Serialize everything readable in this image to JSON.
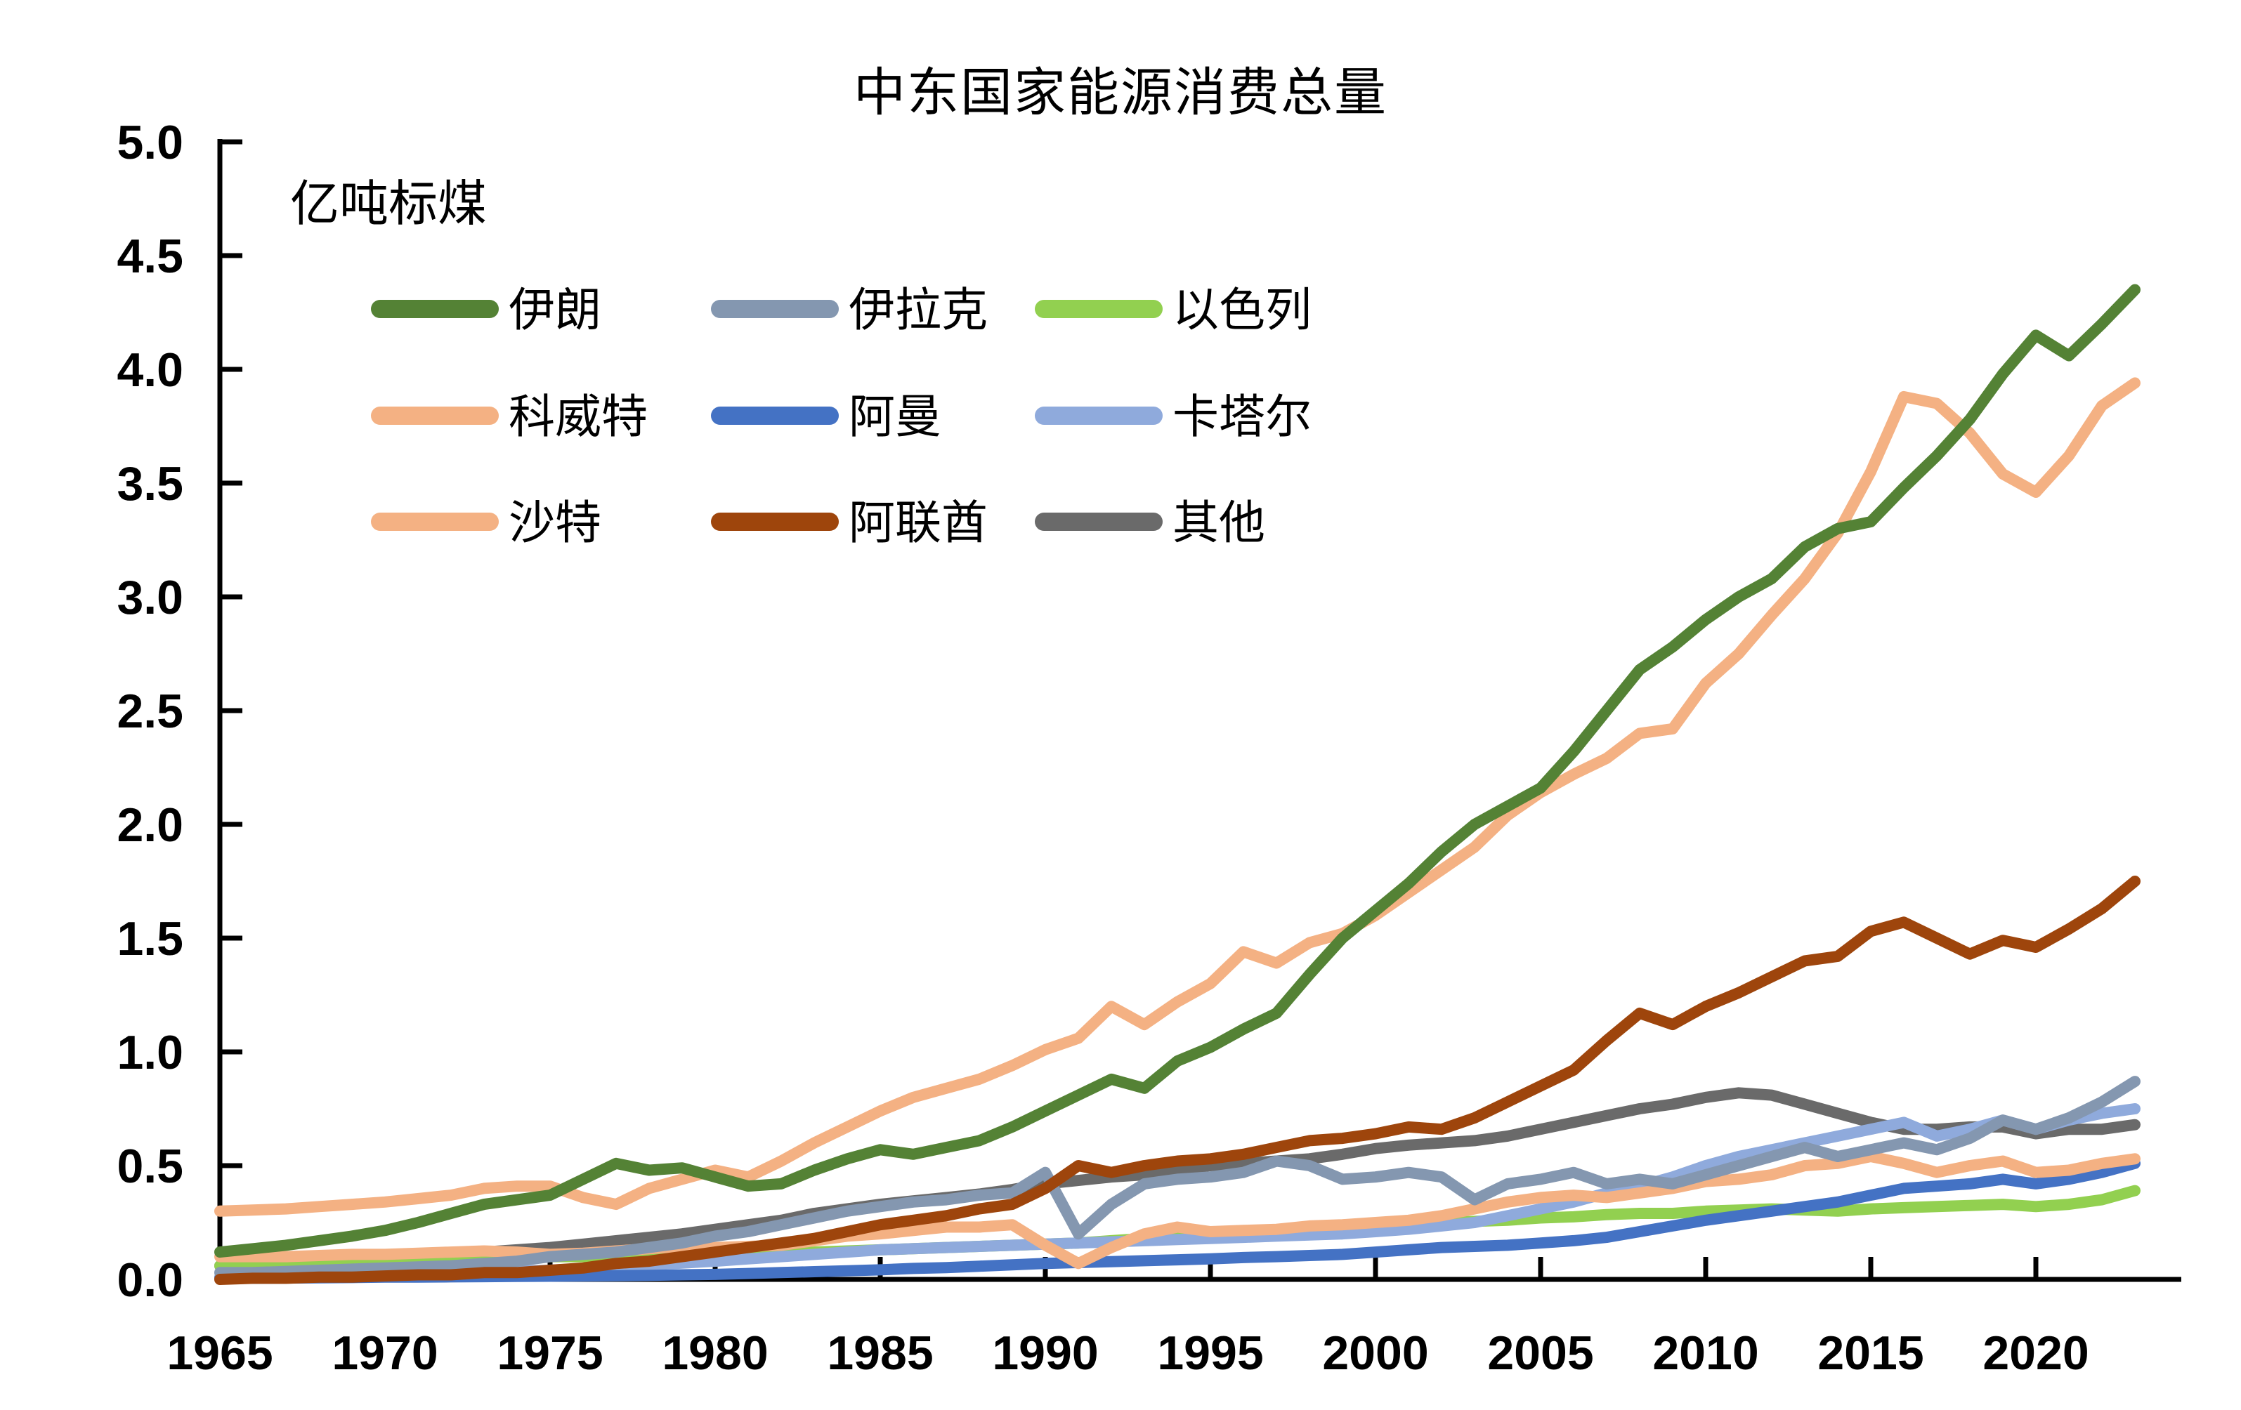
{
  "chart_data": {
    "type": "line",
    "title": "中东国家能源消费总量",
    "ylabel": "亿吨标煤",
    "xlabel": "",
    "ylim": [
      0.0,
      5.0
    ],
    "grid": false,
    "legend_position": "inside-top-left",
    "ytick_labels": [
      "0.0",
      "0.5",
      "1.0",
      "1.5",
      "2.0",
      "2.5",
      "3.0",
      "3.5",
      "4.0",
      "4.5",
      "5.0"
    ],
    "xtick_labels": [
      "1965",
      "1970",
      "1975",
      "1980",
      "1985",
      "1990",
      "1995",
      "2000",
      "2005",
      "2010",
      "2015",
      "2020"
    ],
    "years": [
      1965,
      1966,
      1967,
      1968,
      1969,
      1970,
      1971,
      1972,
      1973,
      1974,
      1975,
      1976,
      1977,
      1978,
      1979,
      1980,
      1981,
      1982,
      1983,
      1984,
      1985,
      1986,
      1987,
      1988,
      1989,
      1990,
      1991,
      1992,
      1993,
      1994,
      1995,
      1996,
      1997,
      1998,
      1999,
      2000,
      2001,
      2002,
      2003,
      2004,
      2005,
      2006,
      2007,
      2008,
      2009,
      2010,
      2011,
      2012,
      2013,
      2014,
      2015,
      2016,
      2017,
      2018,
      2019,
      2020,
      2021,
      2022,
      2023
    ],
    "legend_rows": [
      [
        "iran",
        "iraq",
        "israel"
      ],
      [
        "kuwait",
        "oman",
        "qatar"
      ],
      [
        "saudi",
        "uae",
        "others"
      ]
    ],
    "series": {
      "iran": {
        "label": "伊朗",
        "color": "#548235",
        "values": [
          0.12,
          0.135,
          0.15,
          0.17,
          0.19,
          0.215,
          0.25,
          0.29,
          0.33,
          0.35,
          0.37,
          0.44,
          0.51,
          0.48,
          0.49,
          0.45,
          0.41,
          0.42,
          0.48,
          0.53,
          0.57,
          0.55,
          0.58,
          0.61,
          0.67,
          0.74,
          0.81,
          0.88,
          0.84,
          0.96,
          1.02,
          1.1,
          1.17,
          1.34,
          1.5,
          1.62,
          1.74,
          1.88,
          2.0,
          2.08,
          2.16,
          2.32,
          2.5,
          2.68,
          2.78,
          2.9,
          3.0,
          3.08,
          3.22,
          3.3,
          3.33,
          3.48,
          3.62,
          3.78,
          3.98,
          4.15,
          4.06,
          4.2,
          4.35
        ]
      },
      "iraq": {
        "label": "伊拉克",
        "color": "#8497B0",
        "values": [
          0.03,
          0.03,
          0.035,
          0.04,
          0.045,
          0.05,
          0.055,
          0.06,
          0.07,
          0.08,
          0.1,
          0.11,
          0.12,
          0.14,
          0.16,
          0.19,
          0.21,
          0.24,
          0.27,
          0.3,
          0.32,
          0.34,
          0.35,
          0.37,
          0.38,
          0.47,
          0.2,
          0.33,
          0.42,
          0.44,
          0.45,
          0.47,
          0.52,
          0.5,
          0.44,
          0.45,
          0.47,
          0.45,
          0.35,
          0.42,
          0.44,
          0.47,
          0.42,
          0.44,
          0.42,
          0.46,
          0.5,
          0.54,
          0.58,
          0.54,
          0.57,
          0.6,
          0.57,
          0.62,
          0.7,
          0.66,
          0.71,
          0.78,
          0.87
        ]
      },
      "israel": {
        "label": "以色列",
        "color": "#92D050",
        "values": [
          0.06,
          0.065,
          0.07,
          0.072,
          0.076,
          0.08,
          0.084,
          0.088,
          0.092,
          0.096,
          0.1,
          0.1,
          0.102,
          0.105,
          0.108,
          0.11,
          0.112,
          0.115,
          0.12,
          0.125,
          0.13,
          0.135,
          0.14,
          0.145,
          0.15,
          0.155,
          0.16,
          0.17,
          0.18,
          0.19,
          0.2,
          0.21,
          0.215,
          0.22,
          0.23,
          0.245,
          0.25,
          0.25,
          0.255,
          0.26,
          0.27,
          0.275,
          0.285,
          0.29,
          0.29,
          0.3,
          0.305,
          0.31,
          0.305,
          0.3,
          0.31,
          0.315,
          0.32,
          0.325,
          0.33,
          0.32,
          0.33,
          0.35,
          0.39
        ]
      },
      "kuwait": {
        "label": "科威特",
        "color": "#F4B183",
        "values": [
          0.1,
          0.1,
          0.1,
          0.105,
          0.11,
          0.11,
          0.115,
          0.12,
          0.125,
          0.12,
          0.11,
          0.115,
          0.125,
          0.135,
          0.145,
          0.14,
          0.145,
          0.15,
          0.17,
          0.19,
          0.2,
          0.215,
          0.23,
          0.23,
          0.24,
          0.15,
          0.07,
          0.14,
          0.2,
          0.23,
          0.21,
          0.215,
          0.22,
          0.235,
          0.24,
          0.25,
          0.26,
          0.28,
          0.31,
          0.34,
          0.36,
          0.37,
          0.36,
          0.38,
          0.4,
          0.43,
          0.44,
          0.46,
          0.5,
          0.51,
          0.54,
          0.51,
          0.47,
          0.5,
          0.52,
          0.47,
          0.48,
          0.51,
          0.53
        ]
      },
      "oman": {
        "label": "阿曼",
        "color": "#4472C4",
        "values": [
          0.005,
          0.005,
          0.006,
          0.007,
          0.008,
          0.01,
          0.01,
          0.011,
          0.012,
          0.013,
          0.014,
          0.015,
          0.016,
          0.018,
          0.02,
          0.022,
          0.026,
          0.03,
          0.034,
          0.038,
          0.042,
          0.048,
          0.052,
          0.058,
          0.064,
          0.07,
          0.074,
          0.078,
          0.082,
          0.086,
          0.09,
          0.096,
          0.1,
          0.105,
          0.11,
          0.12,
          0.13,
          0.14,
          0.145,
          0.15,
          0.16,
          0.17,
          0.185,
          0.21,
          0.235,
          0.26,
          0.28,
          0.3,
          0.32,
          0.34,
          0.37,
          0.4,
          0.41,
          0.42,
          0.44,
          0.42,
          0.44,
          0.47,
          0.51
        ]
      },
      "qatar": {
        "label": "卡塔尔",
        "color": "#8FAADC",
        "values": [
          0.01,
          0.012,
          0.014,
          0.016,
          0.018,
          0.02,
          0.024,
          0.028,
          0.032,
          0.036,
          0.04,
          0.048,
          0.056,
          0.064,
          0.072,
          0.08,
          0.09,
          0.1,
          0.11,
          0.12,
          0.13,
          0.135,
          0.14,
          0.145,
          0.15,
          0.155,
          0.16,
          0.165,
          0.17,
          0.175,
          0.18,
          0.185,
          0.19,
          0.195,
          0.2,
          0.21,
          0.22,
          0.235,
          0.25,
          0.28,
          0.31,
          0.34,
          0.38,
          0.41,
          0.45,
          0.5,
          0.54,
          0.57,
          0.6,
          0.63,
          0.66,
          0.69,
          0.63,
          0.66,
          0.7,
          0.66,
          0.7,
          0.73,
          0.75
        ]
      },
      "saudi": {
        "label": "沙特",
        "color": "#F4B183",
        "values": [
          0.3,
          0.305,
          0.31,
          0.32,
          0.33,
          0.34,
          0.355,
          0.37,
          0.4,
          0.41,
          0.41,
          0.36,
          0.33,
          0.4,
          0.44,
          0.48,
          0.45,
          0.52,
          0.6,
          0.67,
          0.74,
          0.8,
          0.84,
          0.88,
          0.94,
          1.01,
          1.06,
          1.2,
          1.12,
          1.22,
          1.3,
          1.44,
          1.39,
          1.48,
          1.52,
          1.6,
          1.7,
          1.8,
          1.9,
          2.04,
          2.14,
          2.22,
          2.29,
          2.4,
          2.42,
          2.62,
          2.75,
          2.92,
          3.08,
          3.28,
          3.55,
          3.88,
          3.85,
          3.72,
          3.54,
          3.46,
          3.62,
          3.84,
          3.94
        ]
      },
      "uae": {
        "label": "阿联酋",
        "color": "#9E450C",
        "values": [
          0.0,
          0.005,
          0.005,
          0.01,
          0.01,
          0.015,
          0.02,
          0.02,
          0.03,
          0.03,
          0.04,
          0.05,
          0.07,
          0.08,
          0.1,
          0.12,
          0.14,
          0.16,
          0.18,
          0.21,
          0.24,
          0.26,
          0.28,
          0.31,
          0.33,
          0.4,
          0.5,
          0.47,
          0.5,
          0.52,
          0.53,
          0.55,
          0.58,
          0.61,
          0.62,
          0.64,
          0.67,
          0.66,
          0.71,
          0.78,
          0.85,
          0.92,
          1.05,
          1.17,
          1.12,
          1.2,
          1.26,
          1.33,
          1.4,
          1.42,
          1.53,
          1.57,
          1.5,
          1.43,
          1.49,
          1.46,
          1.54,
          1.63,
          1.75
        ]
      },
      "others": {
        "label": "其他",
        "color": "#6A6A6A",
        "values": [
          0.06,
          0.065,
          0.07,
          0.075,
          0.08,
          0.09,
          0.1,
          0.11,
          0.12,
          0.13,
          0.14,
          0.155,
          0.17,
          0.185,
          0.2,
          0.22,
          0.24,
          0.26,
          0.29,
          0.31,
          0.33,
          0.345,
          0.36,
          0.375,
          0.395,
          0.42,
          0.435,
          0.45,
          0.46,
          0.48,
          0.5,
          0.51,
          0.52,
          0.53,
          0.55,
          0.575,
          0.59,
          0.6,
          0.61,
          0.63,
          0.66,
          0.69,
          0.72,
          0.75,
          0.77,
          0.8,
          0.82,
          0.81,
          0.77,
          0.73,
          0.69,
          0.66,
          0.66,
          0.67,
          0.67,
          0.64,
          0.66,
          0.66,
          0.68
        ]
      }
    }
  }
}
